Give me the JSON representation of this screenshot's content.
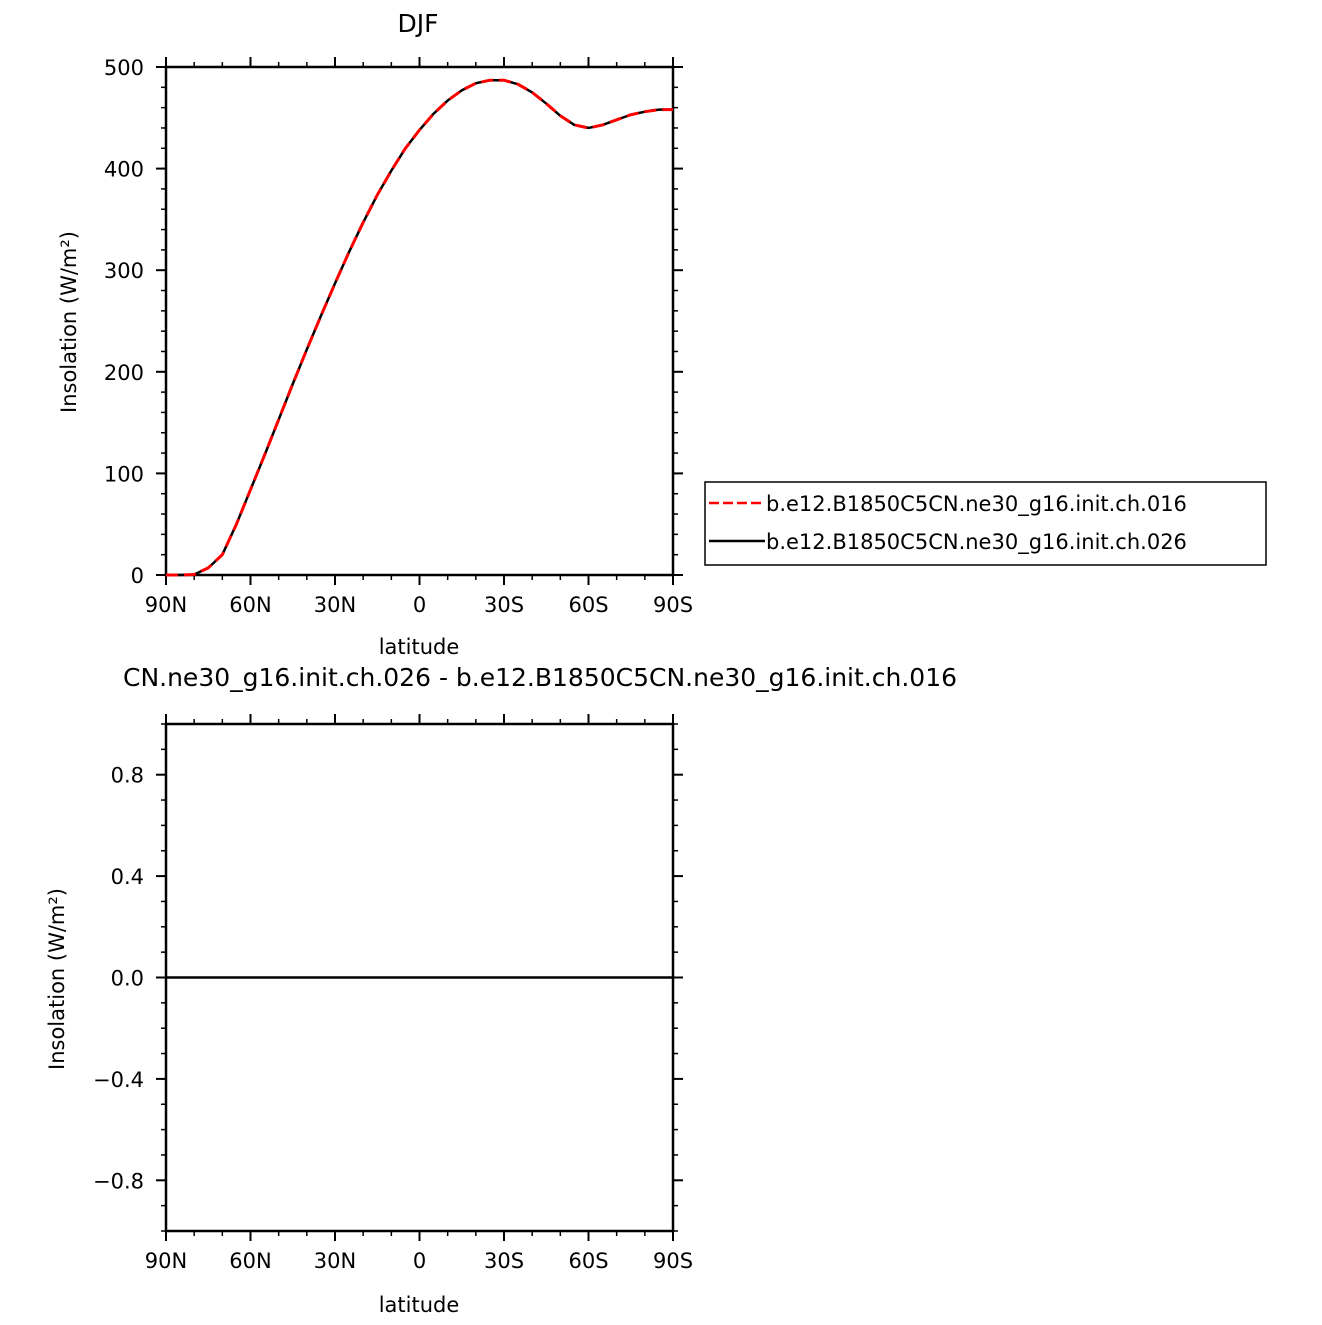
{
  "colors": {
    "series_ch016": "#ff0000",
    "series_ch026": "#000000",
    "axes": "#000000",
    "background": "#ffffff"
  },
  "chart_data": [
    {
      "type": "line",
      "title": "DJF",
      "xlabel": "latitude",
      "ylabel": "Insolation  (W/m²)",
      "xlim": [
        -90,
        90
      ],
      "ylim": [
        0,
        500
      ],
      "x_direction": "north-to-south",
      "xtick_values": [
        -90,
        -60,
        -30,
        0,
        30,
        60,
        90
      ],
      "xtick_labels": [
        "90N",
        "60N",
        "30N",
        "0",
        "30S",
        "60S",
        "90S"
      ],
      "ytick_values": [
        0,
        100,
        200,
        300,
        400,
        500
      ],
      "ytick_labels": [
        "0",
        "100",
        "200",
        "300",
        "400",
        "500"
      ],
      "legend_position": "right",
      "x": [
        -90,
        -85,
        -80,
        -75,
        -70,
        -65,
        -60,
        -55,
        -50,
        -45,
        -40,
        -35,
        -30,
        -25,
        -20,
        -15,
        -10,
        -5,
        0,
        5,
        10,
        15,
        20,
        25,
        30,
        35,
        40,
        45,
        50,
        55,
        60,
        65,
        70,
        75,
        80,
        85,
        90
      ],
      "series": [
        {
          "name": "b.e12.B1850C5CN.ne30_g16.init.ch.016",
          "style": "dashed",
          "color": "#ff0000",
          "values": [
            0,
            0,
            0.5,
            7,
            20,
            50,
            84,
            118,
            153,
            188,
            222,
            255,
            287,
            318,
            347,
            374,
            398,
            420,
            438,
            454,
            467,
            477,
            484,
            487,
            487,
            483,
            475,
            464,
            452,
            443,
            440,
            443,
            448,
            453,
            456,
            458,
            458
          ]
        },
        {
          "name": "b.e12.B1850C5CN.ne30_g16.init.ch.026",
          "style": "solid",
          "color": "#000000",
          "values": [
            0,
            0,
            0.5,
            7,
            20,
            50,
            84,
            118,
            153,
            188,
            222,
            255,
            287,
            318,
            347,
            374,
            398,
            420,
            438,
            454,
            467,
            477,
            484,
            487,
            487,
            483,
            475,
            464,
            452,
            443,
            440,
            443,
            448,
            453,
            456,
            458,
            458
          ]
        }
      ]
    },
    {
      "type": "line",
      "title": "CN.ne30_g16.init.ch.026  -  b.e12.B1850C5CN.ne30_g16.init.ch.016",
      "xlabel": "latitude",
      "ylabel": "Insolation  (W/m²)",
      "xlim": [
        -90,
        90
      ],
      "ylim": [
        -1,
        1
      ],
      "x_direction": "north-to-south",
      "xtick_values": [
        -90,
        -60,
        -30,
        0,
        30,
        60,
        90
      ],
      "xtick_labels": [
        "90N",
        "60N",
        "30N",
        "0",
        "30S",
        "60S",
        "90S"
      ],
      "ytick_values": [
        -0.8,
        -0.4,
        0.0,
        0.4,
        0.8
      ],
      "ytick_labels": [
        "−0.8",
        "−0.4",
        "0.0",
        "0.4",
        "0.8"
      ],
      "x": [
        -90,
        90
      ],
      "series": [
        {
          "style": "solid",
          "color": "#000000",
          "values": [
            0,
            0
          ]
        }
      ]
    }
  ]
}
